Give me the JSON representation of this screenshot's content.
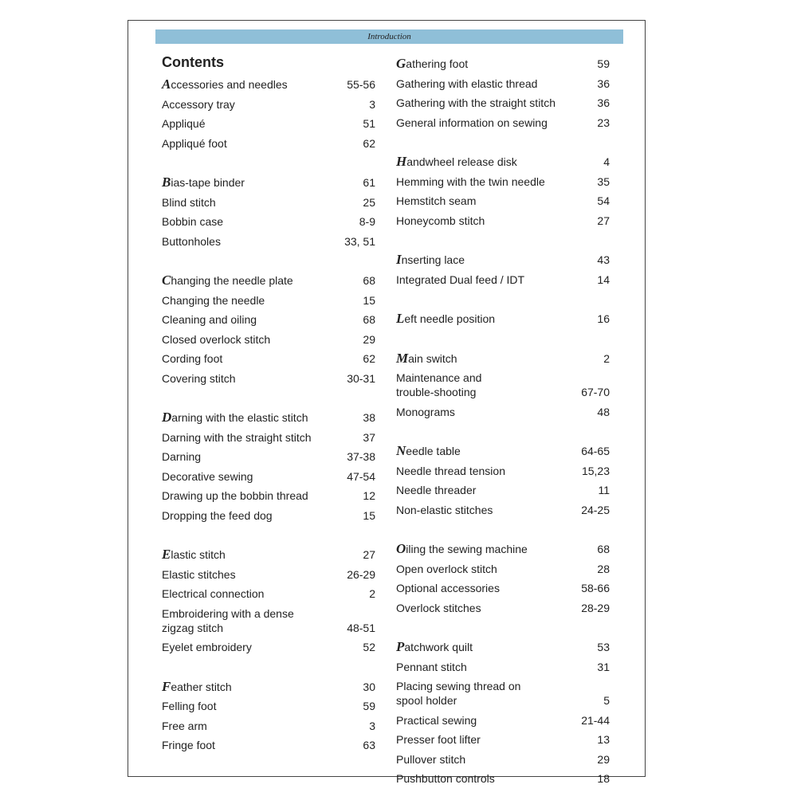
{
  "header": {
    "title": "Introduction"
  },
  "contents": {
    "title": "Contents",
    "columns": [
      [
        {
          "entries": [
            {
              "label": "Accessories and needles",
              "page": "55-56"
            },
            {
              "label": "Accessory tray",
              "page": "3"
            },
            {
              "label": "Appliqué",
              "page": "51"
            },
            {
              "label": "Appliqué foot",
              "page": "62"
            }
          ]
        },
        {
          "entries": [
            {
              "label": "Bias-tape binder",
              "page": "61"
            },
            {
              "label": "Blind stitch",
              "page": "25"
            },
            {
              "label": "Bobbin case",
              "page": "8-9"
            },
            {
              "label": "Buttonholes",
              "page": "33, 51"
            }
          ]
        },
        {
          "entries": [
            {
              "label": "Changing the needle plate",
              "page": "68"
            },
            {
              "label": "Changing the needle",
              "page": "15"
            },
            {
              "label": "Cleaning and oiling",
              "page": "68"
            },
            {
              "label": "Closed overlock stitch",
              "page": "29"
            },
            {
              "label": "Cording foot",
              "page": "62"
            },
            {
              "label": "Covering stitch",
              "page": "30-31"
            }
          ]
        },
        {
          "entries": [
            {
              "label": "Darning with the elastic stitch",
              "page": "38"
            },
            {
              "label": "Darning with the straight stitch",
              "page": "37"
            },
            {
              "label": "Darning",
              "page": "37-38"
            },
            {
              "label": "Decorative sewing",
              "page": "47-54"
            },
            {
              "label": "Drawing up the bobbin thread",
              "page": "12"
            },
            {
              "label": "Dropping the feed dog",
              "page": "15"
            }
          ]
        },
        {
          "entries": [
            {
              "label": "Elastic stitch",
              "page": "27"
            },
            {
              "label": "Elastic stitches",
              "page": "26-29"
            },
            {
              "label": "Electrical connection",
              "page": "2"
            },
            {
              "label": "Embroidering with a dense\nzigzag stitch",
              "page": "48-51"
            },
            {
              "label": "Eyelet embroidery",
              "page": "52"
            }
          ]
        },
        {
          "entries": [
            {
              "label": "Feather stitch",
              "page": "30"
            },
            {
              "label": "Felling foot",
              "page": "59"
            },
            {
              "label": "Free arm",
              "page": "3"
            },
            {
              "label": "Fringe foot",
              "page": "63"
            }
          ]
        }
      ],
      [
        {
          "entries": [
            {
              "label": "Gathering foot",
              "page": "59"
            },
            {
              "label": "Gathering with elastic thread",
              "page": "36"
            },
            {
              "label": "Gathering with the straight stitch",
              "page": "36"
            },
            {
              "label": "General information on sewing",
              "page": "23"
            }
          ]
        },
        {
          "entries": [
            {
              "label": "Handwheel release disk",
              "page": "4"
            },
            {
              "label": "Hemming with the twin needle",
              "page": "35"
            },
            {
              "label": "Hemstitch seam",
              "page": "54"
            },
            {
              "label": "Honeycomb stitch",
              "page": "27"
            }
          ]
        },
        {
          "entries": [
            {
              "label": "Inserting lace",
              "page": "43"
            },
            {
              "label": "Integrated Dual feed / IDT",
              "page": "14"
            }
          ]
        },
        {
          "entries": [
            {
              "label": "Left needle position",
              "page": "16"
            }
          ]
        },
        {
          "entries": [
            {
              "label": "Main switch",
              "page": "2"
            },
            {
              "label": "Maintenance and\ntrouble-shooting",
              "page": "67-70"
            },
            {
              "label": "Monograms",
              "page": "48"
            }
          ]
        },
        {
          "entries": [
            {
              "label": "Needle table",
              "page": "64-65"
            },
            {
              "label": "Needle thread tension",
              "page": "15,23"
            },
            {
              "label": "Needle threader",
              "page": "11"
            },
            {
              "label": "Non-elastic stitches",
              "page": "24-25"
            }
          ]
        },
        {
          "entries": [
            {
              "label": "Oiling the sewing machine",
              "page": "68"
            },
            {
              "label": "Open overlock stitch",
              "page": "28"
            },
            {
              "label": "Optional accessories",
              "page": "58-66"
            },
            {
              "label": "Overlock stitches",
              "page": "28-29"
            }
          ]
        },
        {
          "entries": [
            {
              "label": "Patchwork quilt",
              "page": "53"
            },
            {
              "label": "Pennant stitch",
              "page": "31"
            },
            {
              "label": "Placing sewing thread on\nspool holder",
              "page": "5"
            },
            {
              "label": "Practical sewing",
              "page": "21-44"
            },
            {
              "label": "Presser foot lifter",
              "page": "13"
            },
            {
              "label": "Pullover stitch",
              "page": "29"
            },
            {
              "label": "Pushbutton controls",
              "page": "18"
            }
          ]
        }
      ]
    ]
  }
}
